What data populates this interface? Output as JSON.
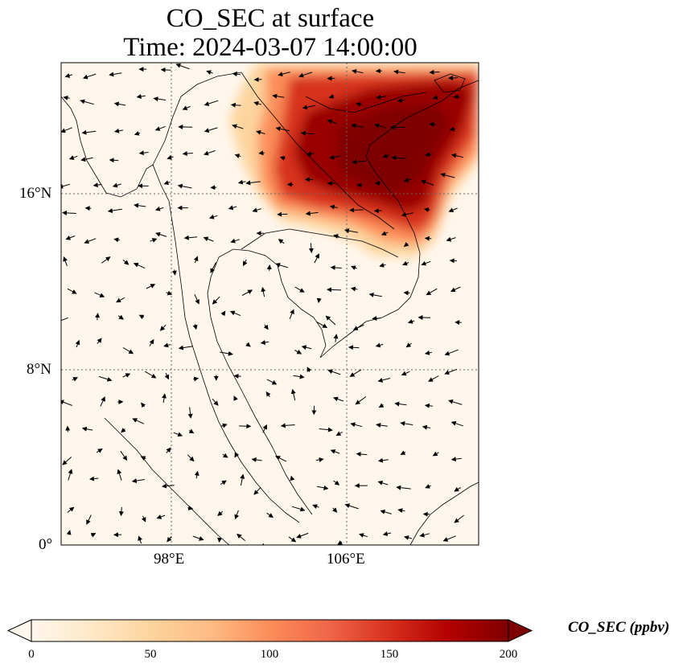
{
  "title": {
    "line1": "CO_SEC at surface",
    "line2": "Time: 2024-03-07 14:00:00"
  },
  "axes": {
    "lat_ticks": [
      "16°N",
      "8°N",
      "0°"
    ],
    "lon_ticks": [
      "98°E",
      "106°E"
    ]
  },
  "colorbar": {
    "label": "CO_SEC (ppbv)",
    "ticks": [
      "0",
      "50",
      "100",
      "150",
      "200"
    ],
    "range": [
      0,
      200
    ],
    "extend": "both",
    "colormap": [
      "#fff7ec",
      "#fee8c8",
      "#fdd49e",
      "#fdbb84",
      "#fc8d59",
      "#ef6548",
      "#d7301f",
      "#b30000",
      "#7f0000"
    ]
  },
  "map": {
    "lon_range": [
      93,
      112
    ],
    "lat_range": [
      0,
      22
    ],
    "gridlines": "dotted",
    "plume": "high CO_SEC over northern Indochina (Laos / northern Vietnam), peaking near 200 ppbv",
    "vectors": "surface wind arrows"
  }
}
